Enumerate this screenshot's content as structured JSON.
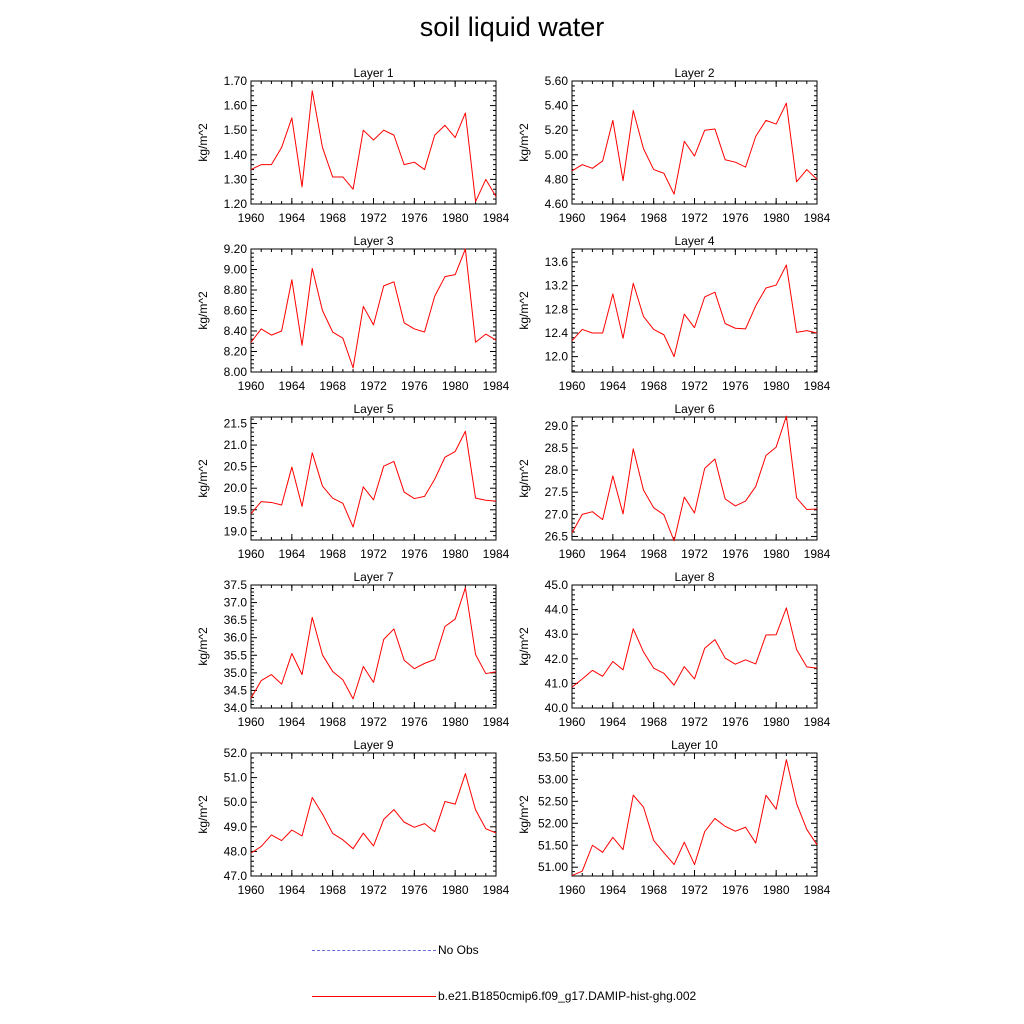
{
  "figure": {
    "title": "soil liquid water"
  },
  "legend": [
    {
      "label": "No Obs",
      "color": "#6b6bd6",
      "style": "dashed"
    },
    {
      "label": "b.e21.B1850cmip6.f09_g17.DAMIP-hist-ghg.002",
      "color": "#ff0000",
      "style": "solid"
    }
  ],
  "chart_data": [
    {
      "type": "line",
      "title": "Layer 1",
      "ylabel": "kg/m^2",
      "xlim": [
        1960,
        1984
      ],
      "ylim": [
        1.2,
        1.7
      ],
      "xticks": [
        "1960",
        "1964",
        "1968",
        "1972",
        "1976",
        "1980",
        "1984"
      ],
      "yticks": [
        "1.20",
        "1.30",
        "1.40",
        "1.50",
        "1.60",
        "1.70"
      ],
      "x": [
        1960,
        1961,
        1962,
        1963,
        1964,
        1965,
        1966,
        1967,
        1968,
        1969,
        1970,
        1971,
        1972,
        1973,
        1974,
        1975,
        1976,
        1977,
        1978,
        1979,
        1980,
        1981,
        1982,
        1983,
        1984
      ],
      "series": [
        {
          "color": "#ff0000",
          "values": [
            1.34,
            1.36,
            1.36,
            1.43,
            1.55,
            1.27,
            1.66,
            1.43,
            1.31,
            1.31,
            1.26,
            1.5,
            1.46,
            1.5,
            1.48,
            1.36,
            1.37,
            1.34,
            1.48,
            1.52,
            1.47,
            1.57,
            1.21,
            1.3,
            1.23
          ]
        }
      ]
    },
    {
      "type": "line",
      "title": "Layer 2",
      "ylabel": "kg/m^2",
      "xlim": [
        1960,
        1984
      ],
      "ylim": [
        4.6,
        5.6
      ],
      "xticks": [
        "1960",
        "1964",
        "1968",
        "1972",
        "1976",
        "1980",
        "1984"
      ],
      "yticks": [
        "4.60",
        "4.80",
        "5.00",
        "5.20",
        "5.40",
        "5.60"
      ],
      "x": [
        1960,
        1961,
        1962,
        1963,
        1964,
        1965,
        1966,
        1967,
        1968,
        1969,
        1970,
        1971,
        1972,
        1973,
        1974,
        1975,
        1976,
        1977,
        1978,
        1979,
        1980,
        1981,
        1982,
        1983,
        1984
      ],
      "series": [
        {
          "color": "#ff0000",
          "values": [
            4.87,
            4.92,
            4.89,
            4.95,
            5.28,
            4.79,
            5.36,
            5.05,
            4.88,
            4.85,
            4.68,
            5.11,
            4.99,
            5.2,
            5.21,
            4.96,
            4.94,
            4.9,
            5.15,
            5.28,
            5.25,
            5.42,
            4.78,
            4.88,
            4.8
          ]
        }
      ]
    },
    {
      "type": "line",
      "title": "Layer 3",
      "ylabel": "kg/m^2",
      "xlim": [
        1960,
        1984
      ],
      "ylim": [
        8.0,
        9.2
      ],
      "xticks": [
        "1960",
        "1964",
        "1968",
        "1972",
        "1976",
        "1980",
        "1984"
      ],
      "yticks": [
        "8.00",
        "8.20",
        "8.40",
        "8.60",
        "8.80",
        "9.00",
        "9.20"
      ],
      "x": [
        1960,
        1961,
        1962,
        1963,
        1964,
        1965,
        1966,
        1967,
        1968,
        1969,
        1970,
        1971,
        1972,
        1973,
        1974,
        1975,
        1976,
        1977,
        1978,
        1979,
        1980,
        1981,
        1982,
        1983,
        1984
      ],
      "series": [
        {
          "color": "#ff0000",
          "values": [
            8.29,
            8.42,
            8.36,
            8.4,
            8.9,
            8.26,
            9.01,
            8.6,
            8.39,
            8.33,
            8.04,
            8.64,
            8.46,
            8.84,
            8.88,
            8.48,
            8.42,
            8.39,
            8.74,
            8.93,
            8.95,
            9.2,
            8.29,
            8.37,
            8.31
          ]
        }
      ]
    },
    {
      "type": "line",
      "title": "Layer 4",
      "ylabel": "kg/m^2",
      "xlim": [
        1960,
        1984
      ],
      "ylim": [
        11.74,
        13.82
      ],
      "xticks": [
        "1960",
        "1964",
        "1968",
        "1972",
        "1976",
        "1980",
        "1984"
      ],
      "yticks": [
        "12.0",
        "12.4",
        "12.8",
        "13.2",
        "13.6"
      ],
      "ytick_values": [
        12.0,
        12.4,
        12.8,
        13.2,
        13.6
      ],
      "x": [
        1960,
        1961,
        1962,
        1963,
        1964,
        1965,
        1966,
        1967,
        1968,
        1969,
        1970,
        1971,
        1972,
        1973,
        1974,
        1975,
        1976,
        1977,
        1978,
        1979,
        1980,
        1981,
        1982,
        1983,
        1984
      ],
      "series": [
        {
          "color": "#ff0000",
          "values": [
            12.27,
            12.46,
            12.4,
            12.4,
            13.06,
            12.31,
            13.24,
            12.68,
            12.46,
            12.37,
            12.0,
            12.72,
            12.49,
            13.01,
            13.09,
            12.56,
            12.48,
            12.47,
            12.86,
            13.16,
            13.21,
            13.55,
            12.41,
            12.44,
            12.4
          ]
        }
      ]
    },
    {
      "type": "line",
      "title": "Layer 5",
      "ylabel": "kg/m^2",
      "xlim": [
        1960,
        1984
      ],
      "ylim": [
        18.8,
        21.65
      ],
      "xticks": [
        "1960",
        "1964",
        "1968",
        "1972",
        "1976",
        "1980",
        "1984"
      ],
      "yticks": [
        "19.0",
        "19.5",
        "20.0",
        "20.5",
        "21.0",
        "21.5"
      ],
      "ytick_values": [
        19.0,
        19.5,
        20.0,
        20.5,
        21.0,
        21.5
      ],
      "x": [
        1960,
        1961,
        1962,
        1963,
        1964,
        1965,
        1966,
        1967,
        1968,
        1969,
        1970,
        1971,
        1972,
        1973,
        1974,
        1975,
        1976,
        1977,
        1978,
        1979,
        1980,
        1981,
        1982,
        1983,
        1984
      ],
      "series": [
        {
          "color": "#ff0000",
          "values": [
            19.41,
            19.69,
            19.67,
            19.61,
            20.49,
            19.58,
            20.82,
            20.05,
            19.77,
            19.65,
            19.1,
            20.03,
            19.73,
            20.51,
            20.62,
            19.91,
            19.76,
            19.81,
            20.21,
            20.72,
            20.85,
            21.32,
            19.77,
            19.72,
            19.7
          ]
        }
      ]
    },
    {
      "type": "line",
      "title": "Layer 6",
      "ylabel": "kg/m^2",
      "xlim": [
        1960,
        1984
      ],
      "ylim": [
        26.42,
        29.2
      ],
      "xticks": [
        "1960",
        "1964",
        "1968",
        "1972",
        "1976",
        "1980",
        "1984"
      ],
      "yticks": [
        "26.5",
        "27.0",
        "27.5",
        "28.0",
        "28.5",
        "29.0"
      ],
      "ytick_values": [
        26.5,
        27.0,
        27.5,
        28.0,
        28.5,
        29.0
      ],
      "x": [
        1960,
        1961,
        1962,
        1963,
        1964,
        1965,
        1966,
        1967,
        1968,
        1969,
        1970,
        1971,
        1972,
        1973,
        1974,
        1975,
        1976,
        1977,
        1978,
        1979,
        1980,
        1981,
        1982,
        1983,
        1984
      ],
      "series": [
        {
          "color": "#ff0000",
          "values": [
            26.58,
            27.0,
            27.06,
            26.88,
            27.87,
            27.01,
            28.48,
            27.55,
            27.15,
            26.99,
            26.4,
            27.39,
            27.03,
            28.04,
            28.25,
            27.35,
            27.19,
            27.3,
            27.63,
            28.33,
            28.52,
            29.22,
            27.37,
            27.11,
            27.12
          ]
        }
      ]
    },
    {
      "type": "line",
      "title": "Layer 7",
      "ylabel": "kg/m^2",
      "xlim": [
        1960,
        1984
      ],
      "ylim": [
        34.0,
        37.5
      ],
      "xticks": [
        "1960",
        "1964",
        "1968",
        "1972",
        "1976",
        "1980",
        "1984"
      ],
      "yticks": [
        "34.0",
        "34.5",
        "35.0",
        "35.5",
        "36.0",
        "36.5",
        "37.0",
        "37.5"
      ],
      "x": [
        1960,
        1961,
        1962,
        1963,
        1964,
        1965,
        1966,
        1967,
        1968,
        1969,
        1970,
        1971,
        1972,
        1973,
        1974,
        1975,
        1976,
        1977,
        1978,
        1979,
        1980,
        1981,
        1982,
        1983,
        1984
      ],
      "series": [
        {
          "color": "#ff0000",
          "values": [
            34.28,
            34.78,
            34.95,
            34.68,
            35.55,
            34.95,
            36.58,
            35.51,
            35.04,
            34.8,
            34.26,
            35.18,
            34.73,
            35.95,
            36.25,
            35.36,
            35.12,
            35.27,
            35.38,
            36.32,
            36.53,
            37.42,
            35.52,
            34.98,
            35.03
          ]
        }
      ]
    },
    {
      "type": "line",
      "title": "Layer 8",
      "ylabel": "kg/m^2",
      "xlim": [
        1960,
        1984
      ],
      "ylim": [
        40.0,
        45.0
      ],
      "xticks": [
        "1960",
        "1964",
        "1968",
        "1972",
        "1976",
        "1980",
        "1984"
      ],
      "yticks": [
        "40.0",
        "41.0",
        "42.0",
        "43.0",
        "44.0",
        "45.0"
      ],
      "x": [
        1960,
        1961,
        1962,
        1963,
        1964,
        1965,
        1966,
        1967,
        1968,
        1969,
        1970,
        1971,
        1972,
        1973,
        1974,
        1975,
        1976,
        1977,
        1978,
        1979,
        1980,
        1981,
        1982,
        1983,
        1984
      ],
      "series": [
        {
          "color": "#ff0000",
          "values": [
            40.85,
            41.18,
            41.53,
            41.29,
            41.89,
            41.55,
            43.22,
            42.28,
            41.62,
            41.41,
            40.93,
            41.68,
            41.18,
            42.43,
            42.78,
            42.03,
            41.78,
            41.96,
            41.79,
            42.97,
            42.98,
            44.07,
            42.38,
            41.67,
            41.62
          ]
        }
      ]
    },
    {
      "type": "line",
      "title": "Layer 9",
      "ylabel": "kg/m^2",
      "xlim": [
        1960,
        1984
      ],
      "ylim": [
        47.0,
        52.0
      ],
      "xticks": [
        "1960",
        "1964",
        "1968",
        "1972",
        "1976",
        "1980",
        "1984"
      ],
      "yticks": [
        "47.0",
        "48.0",
        "49.0",
        "50.0",
        "51.0",
        "52.0"
      ],
      "x": [
        1960,
        1961,
        1962,
        1963,
        1964,
        1965,
        1966,
        1967,
        1968,
        1969,
        1970,
        1971,
        1972,
        1973,
        1974,
        1975,
        1976,
        1977,
        1978,
        1979,
        1980,
        1981,
        1982,
        1983,
        1984
      ],
      "series": [
        {
          "color": "#ff0000",
          "values": [
            47.93,
            48.2,
            48.67,
            48.44,
            48.87,
            48.63,
            50.19,
            49.52,
            48.73,
            48.47,
            48.11,
            48.74,
            48.22,
            49.3,
            49.7,
            49.19,
            48.98,
            49.13,
            48.8,
            50.03,
            49.92,
            51.16,
            49.69,
            48.92,
            48.75
          ]
        }
      ]
    },
    {
      "type": "line",
      "title": "Layer 10",
      "ylabel": "kg/m^2",
      "xlim": [
        1960,
        1984
      ],
      "ylim": [
        50.8,
        53.6
      ],
      "xticks": [
        "1960",
        "1964",
        "1968",
        "1972",
        "1976",
        "1980",
        "1984"
      ],
      "yticks": [
        "51.00",
        "51.50",
        "52.00",
        "52.50",
        "53.00",
        "53.50"
      ],
      "ytick_values": [
        51.0,
        51.5,
        52.0,
        52.5,
        53.0,
        53.5
      ],
      "x": [
        1960,
        1961,
        1962,
        1963,
        1964,
        1965,
        1966,
        1967,
        1968,
        1969,
        1970,
        1971,
        1972,
        1973,
        1974,
        1975,
        1976,
        1977,
        1978,
        1979,
        1980,
        1981,
        1982,
        1983,
        1984
      ],
      "series": [
        {
          "color": "#ff0000",
          "values": [
            50.81,
            50.91,
            51.5,
            51.34,
            51.68,
            51.4,
            52.64,
            52.37,
            51.61,
            51.33,
            51.06,
            51.57,
            51.06,
            51.81,
            52.11,
            51.93,
            51.82,
            51.91,
            51.55,
            52.64,
            52.32,
            53.45,
            52.45,
            51.86,
            51.51
          ]
        }
      ]
    }
  ]
}
